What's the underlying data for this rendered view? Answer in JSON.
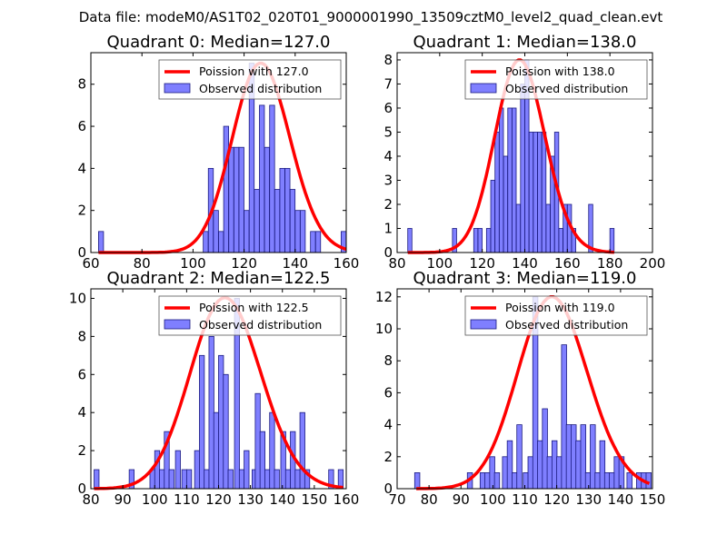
{
  "suptitle": "Data file: modeM0/AS1T02_020T01_9000001990_13509cztM0_level2_quad_clean.evt",
  "colors": {
    "bar_fill": "#7f7fff",
    "bar_edge": "#1a1a80",
    "curve": "#ff0000",
    "axes": "#000000"
  },
  "chart_data": [
    {
      "type": "bar",
      "title": "Quadrant 0: Median=127.0",
      "xlabel": "",
      "ylabel": "",
      "xlim": [
        60,
        160
      ],
      "ylim": [
        0,
        9.5
      ],
      "xticks": [
        60,
        80,
        100,
        120,
        140,
        160
      ],
      "yticks": [
        0,
        2,
        4,
        6,
        8
      ],
      "grid": false,
      "legend": {
        "position": "top-right",
        "entries": [
          "Poission with 127.0",
          "Observed distribution"
        ]
      },
      "bin_width": 1.95,
      "bins": [
        {
          "x": 63,
          "count": 1
        },
        {
          "x": 104,
          "count": 1
        },
        {
          "x": 106,
          "count": 4
        },
        {
          "x": 108,
          "count": 2
        },
        {
          "x": 110,
          "count": 1
        },
        {
          "x": 112,
          "count": 6
        },
        {
          "x": 114,
          "count": 5
        },
        {
          "x": 116,
          "count": 5
        },
        {
          "x": 118,
          "count": 5
        },
        {
          "x": 120,
          "count": 2
        },
        {
          "x": 122,
          "count": 9
        },
        {
          "x": 124,
          "count": 3
        },
        {
          "x": 126,
          "count": 7
        },
        {
          "x": 128,
          "count": 5
        },
        {
          "x": 130,
          "count": 7
        },
        {
          "x": 132,
          "count": 3
        },
        {
          "x": 134,
          "count": 4
        },
        {
          "x": 136,
          "count": 4
        },
        {
          "x": 138,
          "count": 3
        },
        {
          "x": 140,
          "count": 2
        },
        {
          "x": 142,
          "count": 2
        },
        {
          "x": 146,
          "count": 1
        },
        {
          "x": 148,
          "count": 1
        },
        {
          "x": 158,
          "count": 1
        }
      ],
      "poisson": {
        "mean": 127.0,
        "peak": 9.0,
        "xrange": [
          63,
          160
        ]
      }
    },
    {
      "type": "bar",
      "title": "Quadrant 1: Median=138.0",
      "xlabel": "",
      "ylabel": "",
      "xlim": [
        80,
        200
      ],
      "ylim": [
        0,
        8.3
      ],
      "xticks": [
        80,
        100,
        120,
        140,
        160,
        180,
        200
      ],
      "yticks": [
        0,
        1,
        2,
        3,
        4,
        5,
        6,
        7,
        8
      ],
      "grid": false,
      "legend": {
        "position": "top-right",
        "entries": [
          "Poission with 138.0",
          "Observed distribution"
        ]
      },
      "bin_width": 1.95,
      "bins": [
        {
          "x": 85,
          "count": 1
        },
        {
          "x": 106,
          "count": 1
        },
        {
          "x": 116,
          "count": 1
        },
        {
          "x": 118,
          "count": 1
        },
        {
          "x": 122,
          "count": 1
        },
        {
          "x": 124,
          "count": 3
        },
        {
          "x": 126,
          "count": 5
        },
        {
          "x": 128,
          "count": 6
        },
        {
          "x": 130,
          "count": 4
        },
        {
          "x": 132,
          "count": 6
        },
        {
          "x": 134,
          "count": 6
        },
        {
          "x": 136,
          "count": 2
        },
        {
          "x": 138,
          "count": 7
        },
        {
          "x": 140,
          "count": 8
        },
        {
          "x": 142,
          "count": 5
        },
        {
          "x": 144,
          "count": 5
        },
        {
          "x": 146,
          "count": 5
        },
        {
          "x": 148,
          "count": 5
        },
        {
          "x": 150,
          "count": 2
        },
        {
          "x": 152,
          "count": 4
        },
        {
          "x": 154,
          "count": 5
        },
        {
          "x": 156,
          "count": 1
        },
        {
          "x": 158,
          "count": 2
        },
        {
          "x": 160,
          "count": 2
        },
        {
          "x": 162,
          "count": 1
        },
        {
          "x": 170,
          "count": 2
        },
        {
          "x": 180,
          "count": 1
        }
      ],
      "poisson": {
        "mean": 138.0,
        "peak": 8.0,
        "xrange": [
          85,
          182
        ]
      }
    },
    {
      "type": "bar",
      "title": "Quadrant 2: Median=122.5",
      "xlabel": "",
      "ylabel": "",
      "xlim": [
        80,
        160
      ],
      "ylim": [
        0,
        10.5
      ],
      "xticks": [
        80,
        90,
        100,
        110,
        120,
        130,
        140,
        150,
        160
      ],
      "yticks": [
        0,
        2,
        4,
        6,
        8,
        10
      ],
      "grid": false,
      "legend": {
        "position": "top-right",
        "entries": [
          "Poission with 122.5",
          "Observed distribution"
        ]
      },
      "bin_width": 1.55,
      "bins": [
        {
          "x": 81,
          "count": 1
        },
        {
          "x": 92,
          "count": 1
        },
        {
          "x": 98.5,
          "count": 1
        },
        {
          "x": 100,
          "count": 2
        },
        {
          "x": 101.5,
          "count": 1
        },
        {
          "x": 103,
          "count": 3
        },
        {
          "x": 104.5,
          "count": 1
        },
        {
          "x": 106.5,
          "count": 2
        },
        {
          "x": 108.5,
          "count": 1
        },
        {
          "x": 110,
          "count": 1
        },
        {
          "x": 112.5,
          "count": 2
        },
        {
          "x": 114,
          "count": 7
        },
        {
          "x": 115.5,
          "count": 1
        },
        {
          "x": 117,
          "count": 8
        },
        {
          "x": 118.5,
          "count": 4
        },
        {
          "x": 120,
          "count": 7
        },
        {
          "x": 121.5,
          "count": 6
        },
        {
          "x": 123,
          "count": 1
        },
        {
          "x": 125,
          "count": 10
        },
        {
          "x": 126.5,
          "count": 1
        },
        {
          "x": 128,
          "count": 2
        },
        {
          "x": 130.5,
          "count": 1
        },
        {
          "x": 131.5,
          "count": 5
        },
        {
          "x": 133,
          "count": 3
        },
        {
          "x": 134.5,
          "count": 1
        },
        {
          "x": 136,
          "count": 4
        },
        {
          "x": 137.5,
          "count": 1
        },
        {
          "x": 139.5,
          "count": 3
        },
        {
          "x": 141,
          "count": 1
        },
        {
          "x": 142.5,
          "count": 3
        },
        {
          "x": 144,
          "count": 1
        },
        {
          "x": 145.5,
          "count": 4
        },
        {
          "x": 147,
          "count": 1
        },
        {
          "x": 154.5,
          "count": 1
        },
        {
          "x": 157.5,
          "count": 1
        }
      ],
      "poisson": {
        "mean": 122.5,
        "peak": 10.0,
        "xrange": [
          81,
          159
        ]
      }
    },
    {
      "type": "bar",
      "title": "Quadrant 3: Median=119.0",
      "xlabel": "",
      "ylabel": "",
      "xlim": [
        70,
        150
      ],
      "ylim": [
        0,
        12.5
      ],
      "xticks": [
        70,
        80,
        90,
        100,
        110,
        120,
        130,
        140,
        150
      ],
      "yticks": [
        0,
        2,
        4,
        6,
        8,
        10,
        12
      ],
      "grid": false,
      "legend": {
        "position": "top-right",
        "entries": [
          "Poission with 119.0",
          "Observed distribution"
        ]
      },
      "bin_width": 1.6,
      "bins": [
        {
          "x": 75.5,
          "count": 1
        },
        {
          "x": 92,
          "count": 1
        },
        {
          "x": 96,
          "count": 1
        },
        {
          "x": 97.5,
          "count": 1
        },
        {
          "x": 99,
          "count": 2
        },
        {
          "x": 100.5,
          "count": 1
        },
        {
          "x": 103,
          "count": 2
        },
        {
          "x": 104.5,
          "count": 3
        },
        {
          "x": 106,
          "count": 1
        },
        {
          "x": 107.5,
          "count": 4
        },
        {
          "x": 109.5,
          "count": 1
        },
        {
          "x": 111,
          "count": 2
        },
        {
          "x": 112.5,
          "count": 12
        },
        {
          "x": 114,
          "count": 3
        },
        {
          "x": 115.5,
          "count": 5
        },
        {
          "x": 117,
          "count": 2
        },
        {
          "x": 118.5,
          "count": 3
        },
        {
          "x": 120,
          "count": 2
        },
        {
          "x": 121.5,
          "count": 9
        },
        {
          "x": 123,
          "count": 4
        },
        {
          "x": 124.5,
          "count": 4
        },
        {
          "x": 126,
          "count": 3
        },
        {
          "x": 127.5,
          "count": 4
        },
        {
          "x": 129,
          "count": 1
        },
        {
          "x": 130.5,
          "count": 4
        },
        {
          "x": 132,
          "count": 1
        },
        {
          "x": 133.5,
          "count": 3
        },
        {
          "x": 135,
          "count": 1
        },
        {
          "x": 136.5,
          "count": 1
        },
        {
          "x": 138,
          "count": 2
        },
        {
          "x": 139.5,
          "count": 2
        },
        {
          "x": 142,
          "count": 1
        },
        {
          "x": 145,
          "count": 1
        },
        {
          "x": 146.5,
          "count": 1
        },
        {
          "x": 148,
          "count": 1
        }
      ],
      "poisson": {
        "mean": 119.0,
        "peak": 12.0,
        "xrange": [
          76,
          149
        ]
      }
    }
  ]
}
